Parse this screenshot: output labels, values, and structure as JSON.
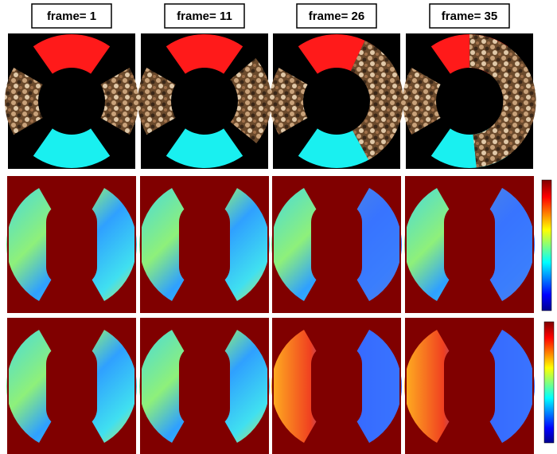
{
  "frames": [
    {
      "label": "frame= 1"
    },
    {
      "label": "frame= 11"
    },
    {
      "label": "frame= 26"
    },
    {
      "label": "frame= 35"
    }
  ]
}
